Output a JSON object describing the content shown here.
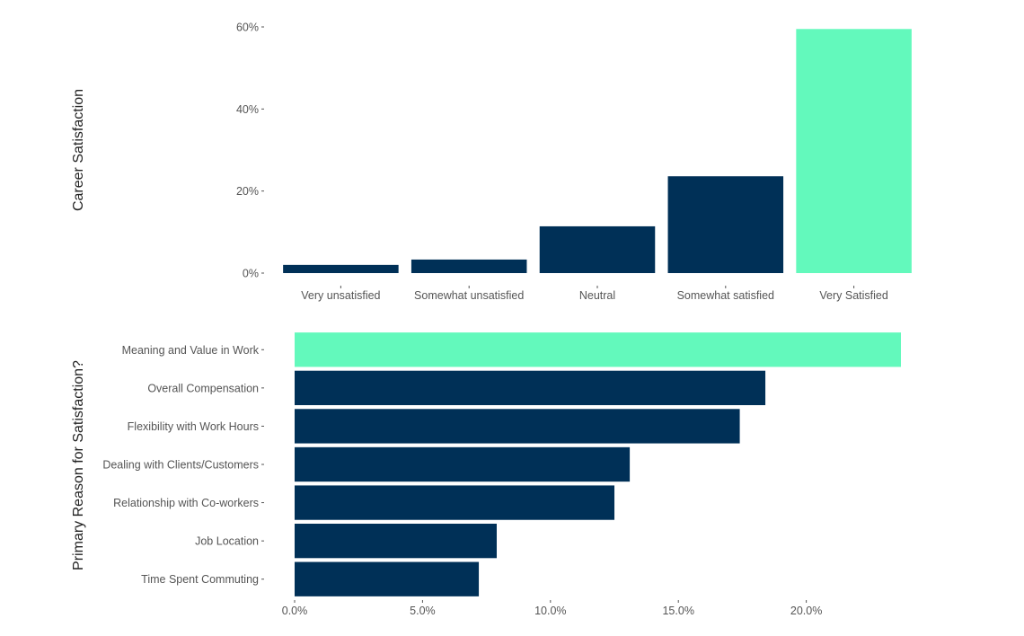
{
  "colors": {
    "default": "#003057",
    "highlight": "#63f9bc"
  },
  "chart_data": [
    {
      "type": "bar",
      "orientation": "vertical",
      "ylabel": "Career Satisfaction",
      "categories": [
        "Very unsatisfied",
        "Somewhat unsatisfied",
        "Neutral",
        "Somewhat satisfied",
        "Very Satisfied"
      ],
      "values": [
        2.0,
        3.3,
        11.4,
        23.6,
        59.5
      ],
      "highlight_index": 4,
      "ylim": [
        0,
        60
      ],
      "yticks": [
        0,
        20,
        40,
        60
      ],
      "ytick_labels": [
        "0%",
        "20%",
        "40%",
        "60%"
      ],
      "grid": false
    },
    {
      "type": "bar",
      "orientation": "horizontal",
      "ylabel": "Primary Reason for Satisfaction?",
      "categories": [
        "Meaning and Value in Work",
        "Overall Compensation",
        "Flexibility with Work Hours",
        "Dealing with Clients/Customers",
        "Relationship with Co-workers",
        "Job Location",
        "Time Spent Commuting"
      ],
      "values": [
        23.7,
        18.4,
        17.4,
        13.1,
        12.5,
        7.9,
        7.2
      ],
      "highlight_index": 0,
      "xlim": [
        0,
        23.7
      ],
      "xticks": [
        0,
        5,
        10,
        15,
        20
      ],
      "xtick_labels": [
        "0.0%",
        "5.0%",
        "10.0%",
        "15.0%",
        "20.0%"
      ],
      "grid": false
    }
  ]
}
